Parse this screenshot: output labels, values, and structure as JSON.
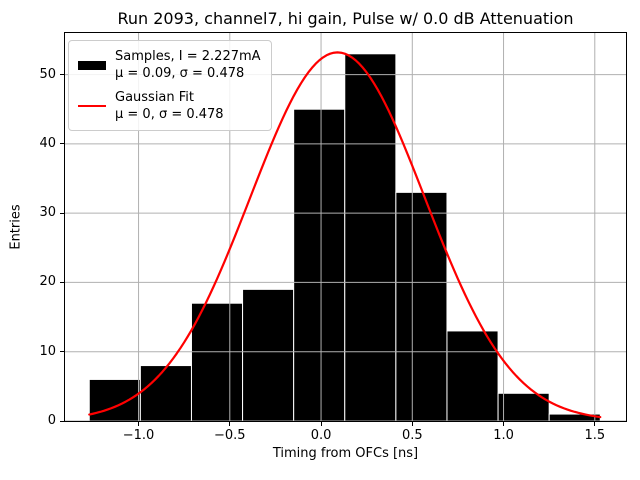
{
  "chart_data": {
    "type": "bar",
    "subtype": "histogram-with-gaussian-fit",
    "title": "Run 2093, channel7, hi gain, Pulse w/ 0.0 dB Attenuation",
    "xlabel": "Timing from OFCs [ns]",
    "ylabel": "Entries",
    "xlim": [
      -1.403,
      1.671
    ],
    "ylim": [
      0,
      56
    ],
    "xticks": [
      -1.0,
      -0.5,
      0.0,
      0.5,
      1.0,
      1.5
    ],
    "xtick_labels": [
      "−1.0",
      "−0.5",
      "0.0",
      "0.5",
      "1.0",
      "1.5"
    ],
    "yticks": [
      0,
      10,
      20,
      30,
      40,
      50
    ],
    "ytick_labels": [
      "0",
      "10",
      "20",
      "30",
      "40",
      "50"
    ],
    "grid": true,
    "grid_color": "#b0b0b0",
    "bar_color": "#000000",
    "bar_edge_color": "#ffffff",
    "line_color": "#ff0000",
    "histogram": {
      "bin_edges": [
        -1.27,
        -0.99,
        -0.71,
        -0.43,
        -0.15,
        0.13,
        0.41,
        0.69,
        0.97,
        1.25,
        1.53
      ],
      "counts": [
        6,
        8,
        17,
        19,
        45,
        53,
        33,
        13,
        4,
        1
      ]
    },
    "gaussian_fit": {
      "amplitude": 53.2,
      "mu": 0.09,
      "sigma": 0.478,
      "x_start": -1.27,
      "x_end": 1.53
    },
    "legend": {
      "position": "upper left",
      "items": [
        {
          "swatch": "black-rect",
          "line1": "Samples, I = 2.227mA",
          "line2": "μ = 0.09, σ = 0.478"
        },
        {
          "swatch": "red-line",
          "line1": "Gaussian Fit",
          "line2": "μ = 0, σ = 0.478"
        }
      ]
    }
  }
}
